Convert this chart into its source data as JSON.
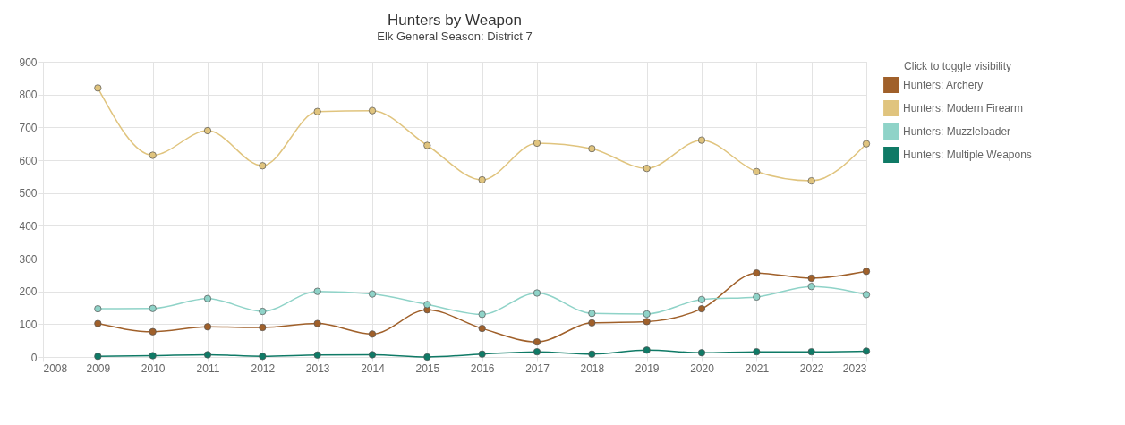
{
  "chart_data": {
    "type": "line",
    "title": "Hunters by Weapon",
    "subtitle": "Elk General Season: District 7",
    "legend_title": "Click to toggle visibility",
    "x": [
      2009,
      2010,
      2011,
      2012,
      2013,
      2014,
      2015,
      2016,
      2017,
      2018,
      2019,
      2020,
      2021,
      2022,
      2023
    ],
    "series": [
      {
        "name": "Hunters: Archery",
        "color": "#a0602a",
        "values": [
          102,
          77,
          92,
          90,
          102,
          70,
          144,
          87,
          46,
          104,
          108,
          147,
          256,
          240,
          261
        ]
      },
      {
        "name": "Hunters: Modern Firearm",
        "color": "#e0c47e",
        "values": [
          820,
          615,
          690,
          583,
          748,
          751,
          645,
          540,
          652,
          635,
          575,
          661,
          565,
          537,
          650
        ]
      },
      {
        "name": "Hunters: Muzzleloader",
        "color": "#8fd3c8",
        "values": [
          147,
          148,
          178,
          139,
          200,
          192,
          160,
          130,
          195,
          133,
          131,
          175,
          183,
          215,
          190
        ]
      },
      {
        "name": "Hunters: Multiple Weapons",
        "color": "#0f7a66",
        "values": [
          2,
          4,
          7,
          2,
          6,
          7,
          0,
          9,
          16,
          9,
          21,
          13,
          16,
          16,
          18
        ]
      }
    ],
    "xlim": [
      2008,
      2023
    ],
    "xticks": [
      2008,
      2009,
      2010,
      2011,
      2012,
      2013,
      2014,
      2015,
      2016,
      2017,
      2018,
      2019,
      2020,
      2021,
      2022,
      2023
    ],
    "ylim": [
      0,
      900
    ],
    "yticks": [
      0,
      100,
      200,
      300,
      400,
      500,
      600,
      700,
      800,
      900
    ],
    "grid": true,
    "legend": "right",
    "marker": "circle",
    "line_style": "solid"
  }
}
